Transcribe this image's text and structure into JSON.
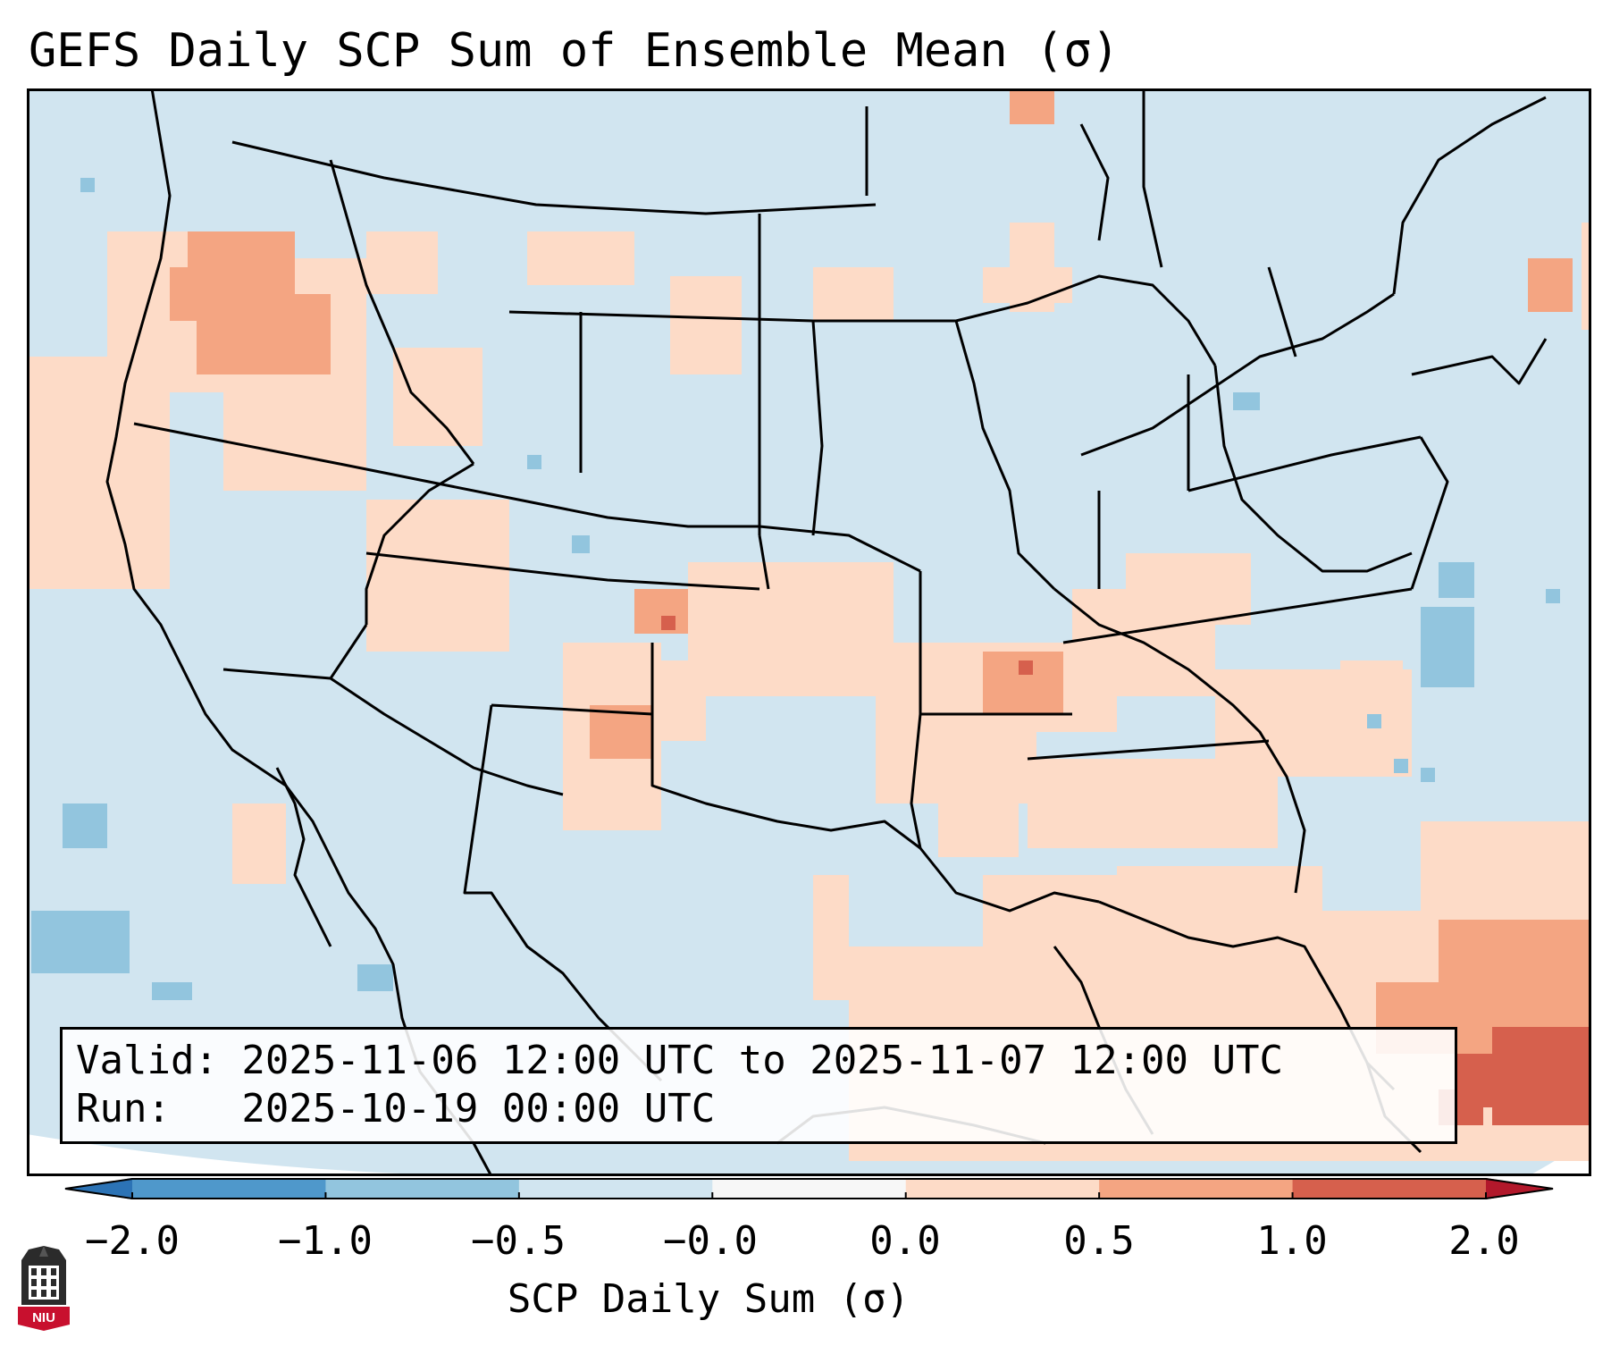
{
  "title": "GEFS Daily SCP Sum of Ensemble Mean (σ)",
  "info": {
    "valid_line": "Valid: 2025-11-06 12:00 UTC to 2025-11-07 12:00 UTC",
    "run_line": "Run:   2025-10-19 00:00 UTC"
  },
  "colorbar": {
    "label": "SCP Daily Sum (σ)",
    "ticks": [
      "−2.0",
      "−1.0",
      "−0.5",
      "−0.0",
      "0.0",
      "0.5",
      "1.0",
      "2.0"
    ],
    "colors": [
      "#2c73b5",
      "#4f98cb",
      "#92c5de",
      "#d1e5f0",
      "#f7f7f7",
      "#fddbc7",
      "#f4a582",
      "#d6604d",
      "#b2182b"
    ]
  },
  "map": {
    "region": "Continental United States",
    "background_color": "#d1e5f0",
    "border_color": "#000000"
  },
  "logo": {
    "text": "NIU",
    "color": "#c8102e"
  }
}
